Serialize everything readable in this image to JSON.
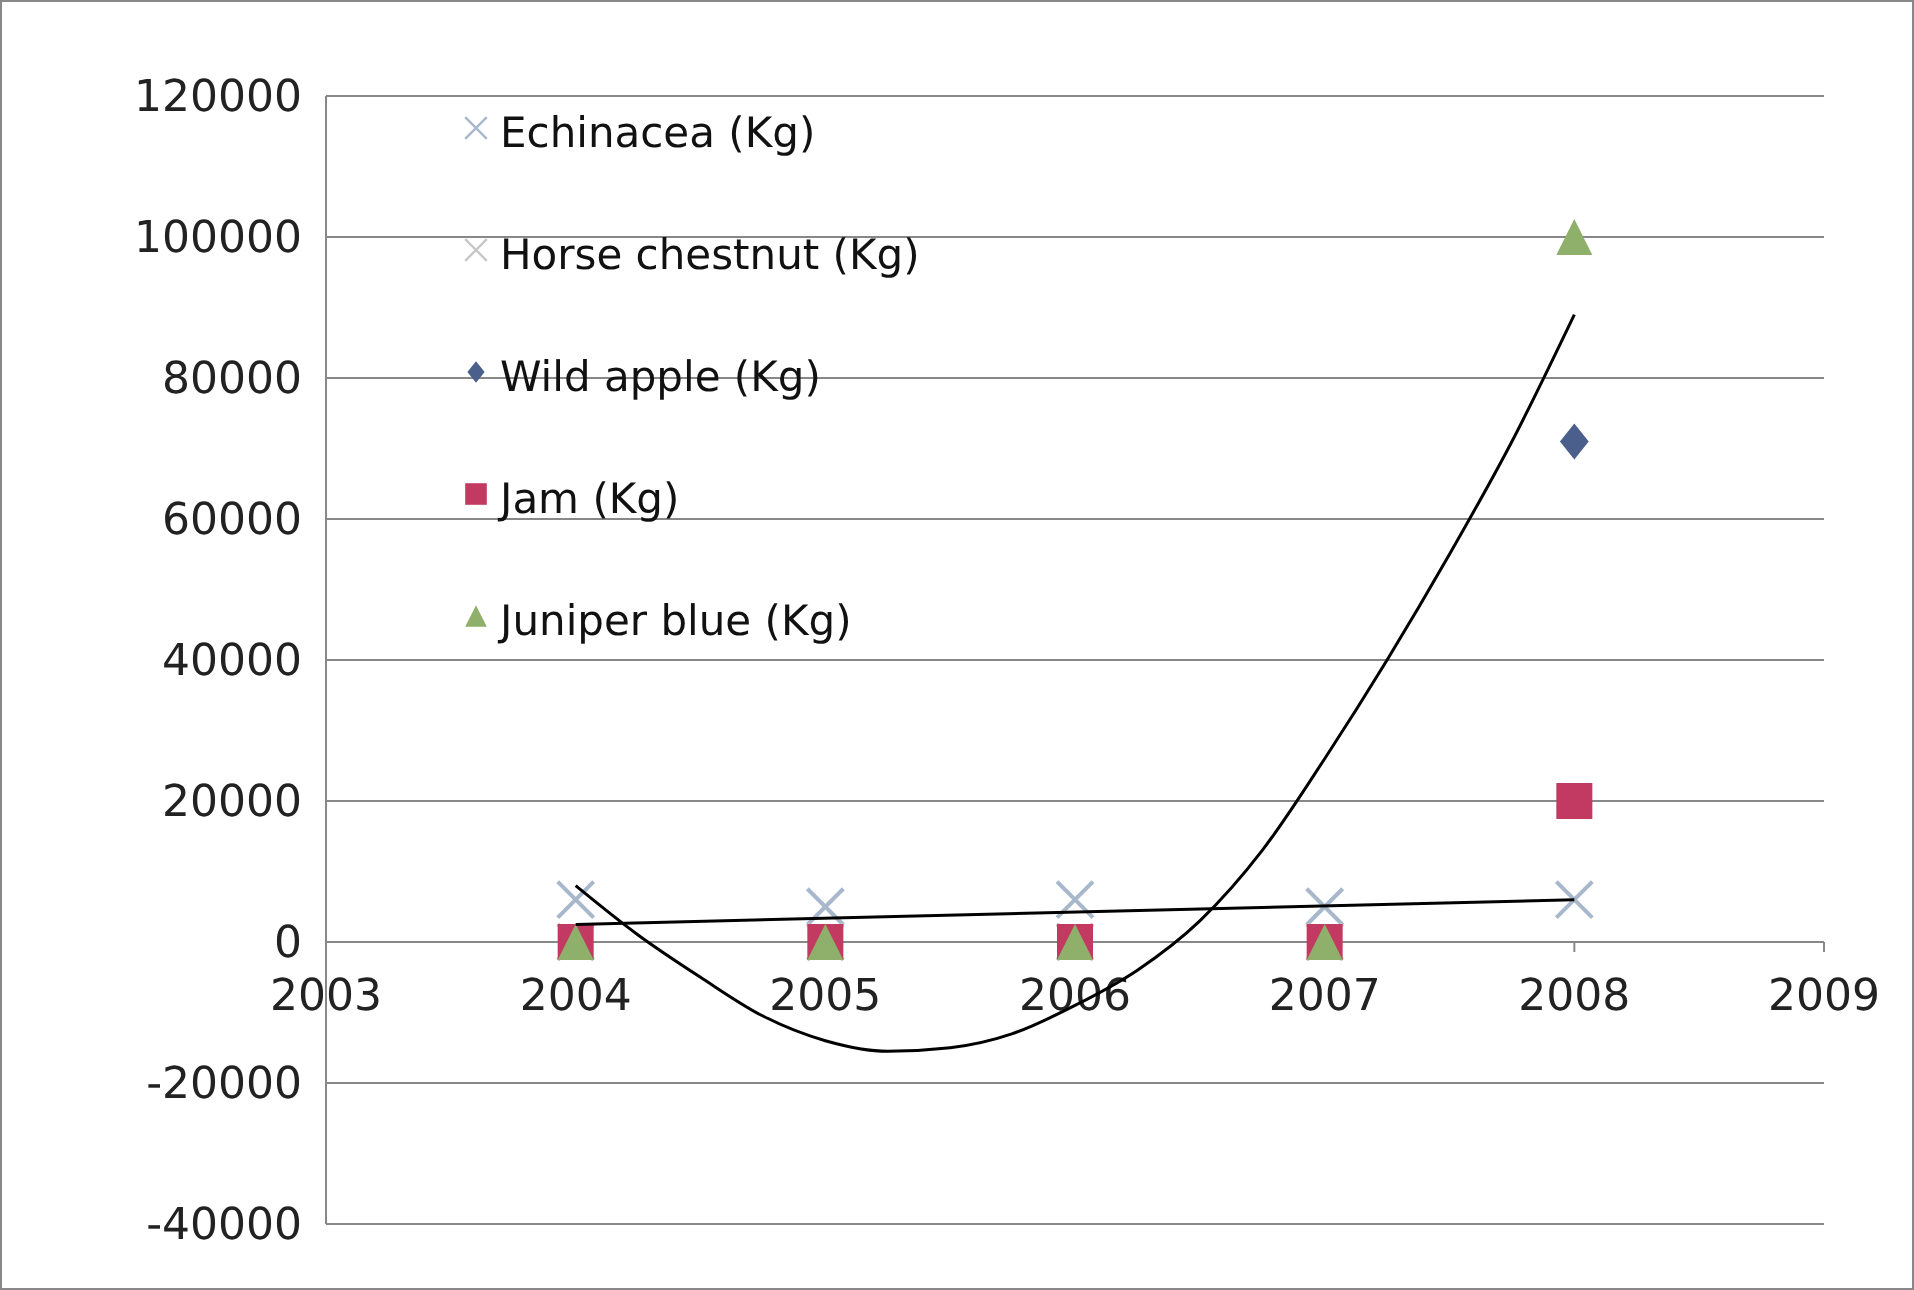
{
  "chart_data": {
    "type": "scatter",
    "xlim": [
      2003,
      2009
    ],
    "xticks": [
      2003,
      2004,
      2005,
      2006,
      2007,
      2008,
      2009
    ],
    "ylim": [
      -40000,
      120000
    ],
    "yticks": [
      -40000,
      -20000,
      0,
      20000,
      40000,
      60000,
      80000,
      100000,
      120000
    ],
    "grid": "y",
    "legend": "top left",
    "x": [
      2004,
      2005,
      2006,
      2007,
      2008
    ],
    "series": [
      {
        "name": "Echinacea (Kg)",
        "color": "#a8b8cc",
        "marker": "cross",
        "values": [
          6000,
          5000,
          6000,
          5000,
          6000
        ]
      },
      {
        "name": "Horse chestnut (Kg)",
        "color": "#c8c8c8",
        "marker": "cross",
        "values": [
          0,
          0,
          0,
          0,
          null
        ]
      },
      {
        "name": "Wild apple (Kg)",
        "color": "#4a5f8c",
        "marker": "diamond",
        "values": [
          null,
          null,
          null,
          null,
          71000
        ]
      },
      {
        "name": "Jam (Kg)",
        "color": "#c23a62",
        "marker": "square",
        "values": [
          0,
          0,
          0,
          0,
          20000
        ]
      },
      {
        "name": "Juniper blue (Kg)",
        "color": "#8fb06a",
        "marker": "triangle",
        "values": [
          0,
          0,
          0,
          0,
          100000
        ]
      },
      {
        "type": "line",
        "color": "#000000",
        "marker": "none",
        "x": [
          2004,
          2008
        ],
        "values": [
          2500,
          6000
        ]
      },
      {
        "type": "line",
        "color": "#000000",
        "marker": "none",
        "x": [
          2004,
          2004.25,
          2004.5,
          2004.75,
          2005,
          2005.25,
          2005.5,
          2005.75,
          2006,
          2006.25,
          2006.5,
          2006.75,
          2007,
          2007.25,
          2007.5,
          2007.75,
          2008
        ],
        "values": [
          8000,
          1000,
          -5000,
          -10500,
          -14000,
          -15500,
          -15000,
          -13000,
          -9000,
          -4000,
          3000,
          13000,
          26000,
          40000,
          55000,
          71000,
          89000
        ]
      }
    ]
  }
}
